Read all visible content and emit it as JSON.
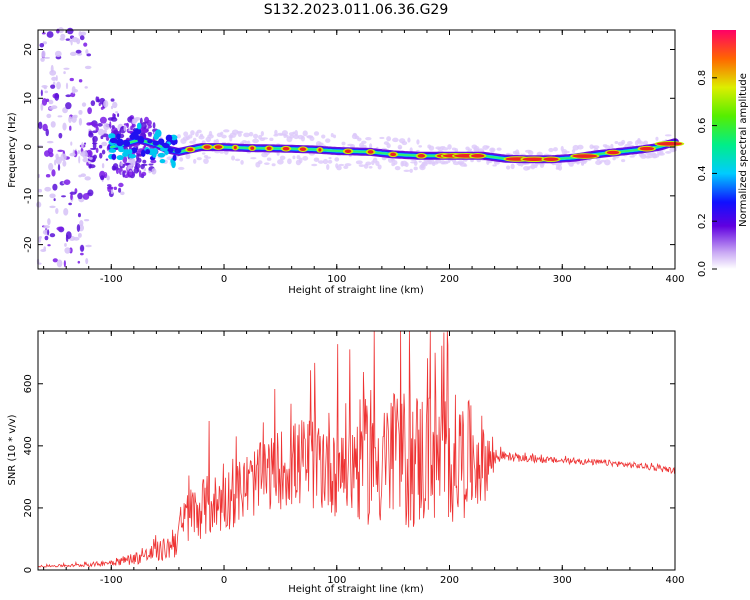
{
  "figure": {
    "title": "S132.2023.011.06.36.G29"
  },
  "chart_data": [
    {
      "type": "heatmap",
      "xlabel": "Height of straight line (km)",
      "ylabel": "Frequency (Hz)",
      "xlim": [
        -165,
        400
      ],
      "ylim": [
        -25,
        24
      ],
      "xticks": [
        -100,
        0,
        100,
        200,
        300,
        400
      ],
      "yticks": [
        -20,
        -10,
        0,
        10,
        20
      ],
      "ridge": {
        "x": [
          -110,
          -90,
          -75,
          -60,
          -50,
          -40,
          -20,
          0,
          20,
          50,
          80,
          100,
          130,
          150,
          175,
          200,
          230,
          250,
          270,
          290,
          310,
          330,
          350,
          370,
          385,
          400
        ],
        "freq_hz": [
          -0.5,
          0.5,
          1.5,
          0.5,
          -0.5,
          -1,
          0,
          0,
          -0.2,
          -0.3,
          -0.5,
          -0.8,
          -1,
          -1.5,
          -1.8,
          -1.8,
          -1.8,
          -2.4,
          -2.5,
          -2.5,
          -2.2,
          -1.5,
          -1,
          -0.5,
          0,
          1
        ]
      },
      "colorbar": {
        "label": "Normalized spectral amplitude",
        "range": [
          0,
          1
        ],
        "ticks": [
          "0.0",
          "0.2",
          "0.4",
          "0.6",
          "0.8"
        ]
      }
    },
    {
      "type": "line",
      "xlabel": "Height of straight line (km)",
      "ylabel": "SNR (10 * v/v)",
      "xlim": [
        -165,
        400
      ],
      "ylim": [
        0,
        770
      ],
      "xticks": [
        -100,
        0,
        100,
        200,
        300,
        400
      ],
      "yticks": [
        0,
        200,
        400,
        600
      ],
      "color": "#ee3333",
      "series": [
        {
          "name": "SNR",
          "envelope_x": [
            -165,
            -130,
            -110,
            -90,
            -70,
            -50,
            -40,
            -30,
            -20,
            0,
            20,
            40,
            60,
            80,
            100,
            120,
            140,
            160,
            180,
            200,
            220,
            235,
            245,
            260,
            300,
            340,
            370,
            400
          ],
          "envelope_y": [
            12,
            15,
            20,
            30,
            45,
            70,
            120,
            180,
            200,
            220,
            270,
            310,
            340,
            350,
            350,
            350,
            355,
            355,
            360,
            360,
            360,
            355,
            370,
            360,
            352,
            345,
            335,
            320
          ],
          "spike_amplitude": [
            3,
            5,
            8,
            15,
            25,
            40,
            80,
            90,
            100,
            100,
            110,
            120,
            140,
            160,
            180,
            200,
            220,
            230,
            230,
            220,
            180,
            120,
            15,
            12,
            10,
            10,
            10,
            10
          ],
          "peaks": [
            {
              "x": 183,
              "y": 770
            },
            {
              "x": 187,
              "y": 700
            },
            {
              "x": -13,
              "y": 480
            },
            {
              "x": 130,
              "y": 580
            }
          ]
        }
      ]
    }
  ]
}
